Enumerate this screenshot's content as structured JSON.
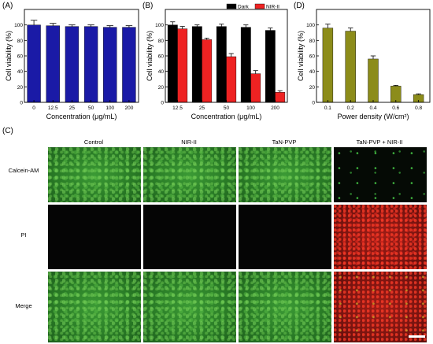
{
  "panel_labels": {
    "A": "(A)",
    "B": "(B)",
    "C": "(C)",
    "D": "(D)"
  },
  "colors": {
    "blue": "#1a1aa6",
    "black": "#000000",
    "red": "#ee2222",
    "olive": "#8c8c1a"
  },
  "chart_data": [
    {
      "id": "A",
      "type": "bar",
      "categories": [
        "0",
        "12.5",
        "25",
        "50",
        "100",
        "200"
      ],
      "series": [
        {
          "values": [
            100,
            99,
            98,
            98,
            97,
            97
          ],
          "errors": [
            6,
            3,
            2,
            2,
            2,
            2
          ],
          "color": "#1a1aa6"
        }
      ],
      "xlabel": "Concentration (μg/mL)",
      "ylabel": "Cell viability (%)",
      "ylim": [
        0,
        120
      ],
      "yticks": [
        "0",
        "20",
        "40",
        "60",
        "80",
        "100"
      ]
    },
    {
      "id": "B",
      "type": "bar",
      "categories": [
        "12.5",
        "25",
        "50",
        "100",
        "200"
      ],
      "series": [
        {
          "name": "Dark",
          "values": [
            100,
            98,
            98,
            97,
            93
          ],
          "errors": [
            4,
            2,
            3,
            3,
            3
          ],
          "color": "#000000"
        },
        {
          "name": "NIR-II",
          "values": [
            95,
            81,
            59,
            37,
            13
          ],
          "errors": [
            3,
            2,
            4,
            4,
            2
          ],
          "color": "#ee2222"
        }
      ],
      "xlabel": "Concentration (μg/mL)",
      "ylabel": "Cell viability (%)",
      "ylim": [
        0,
        120
      ],
      "yticks": [
        "0",
        "20",
        "40",
        "60",
        "80",
        "100"
      ],
      "legend": "top-right"
    },
    {
      "id": "D",
      "type": "bar",
      "categories": [
        "0.1",
        "0.2",
        "0.4",
        "0.6",
        "0.8"
      ],
      "series": [
        {
          "values": [
            96,
            92,
            56,
            21,
            10
          ],
          "errors": [
            5,
            4,
            4,
            1,
            1
          ],
          "color": "#8c8c1a"
        }
      ],
      "xlabel": "Power density (W/cm²)",
      "ylabel": "Cell viability (%)",
      "ylim": [
        0,
        120
      ],
      "yticks": [
        "0",
        "20",
        "40",
        "60",
        "80",
        "100"
      ]
    }
  ],
  "micrograph": {
    "columns": [
      "Control",
      "NIR-II",
      "TaN-PVP",
      "TaN-PVP + NIR-II"
    ],
    "rows": [
      "Calcein-AM",
      "PI",
      "Merge"
    ]
  }
}
